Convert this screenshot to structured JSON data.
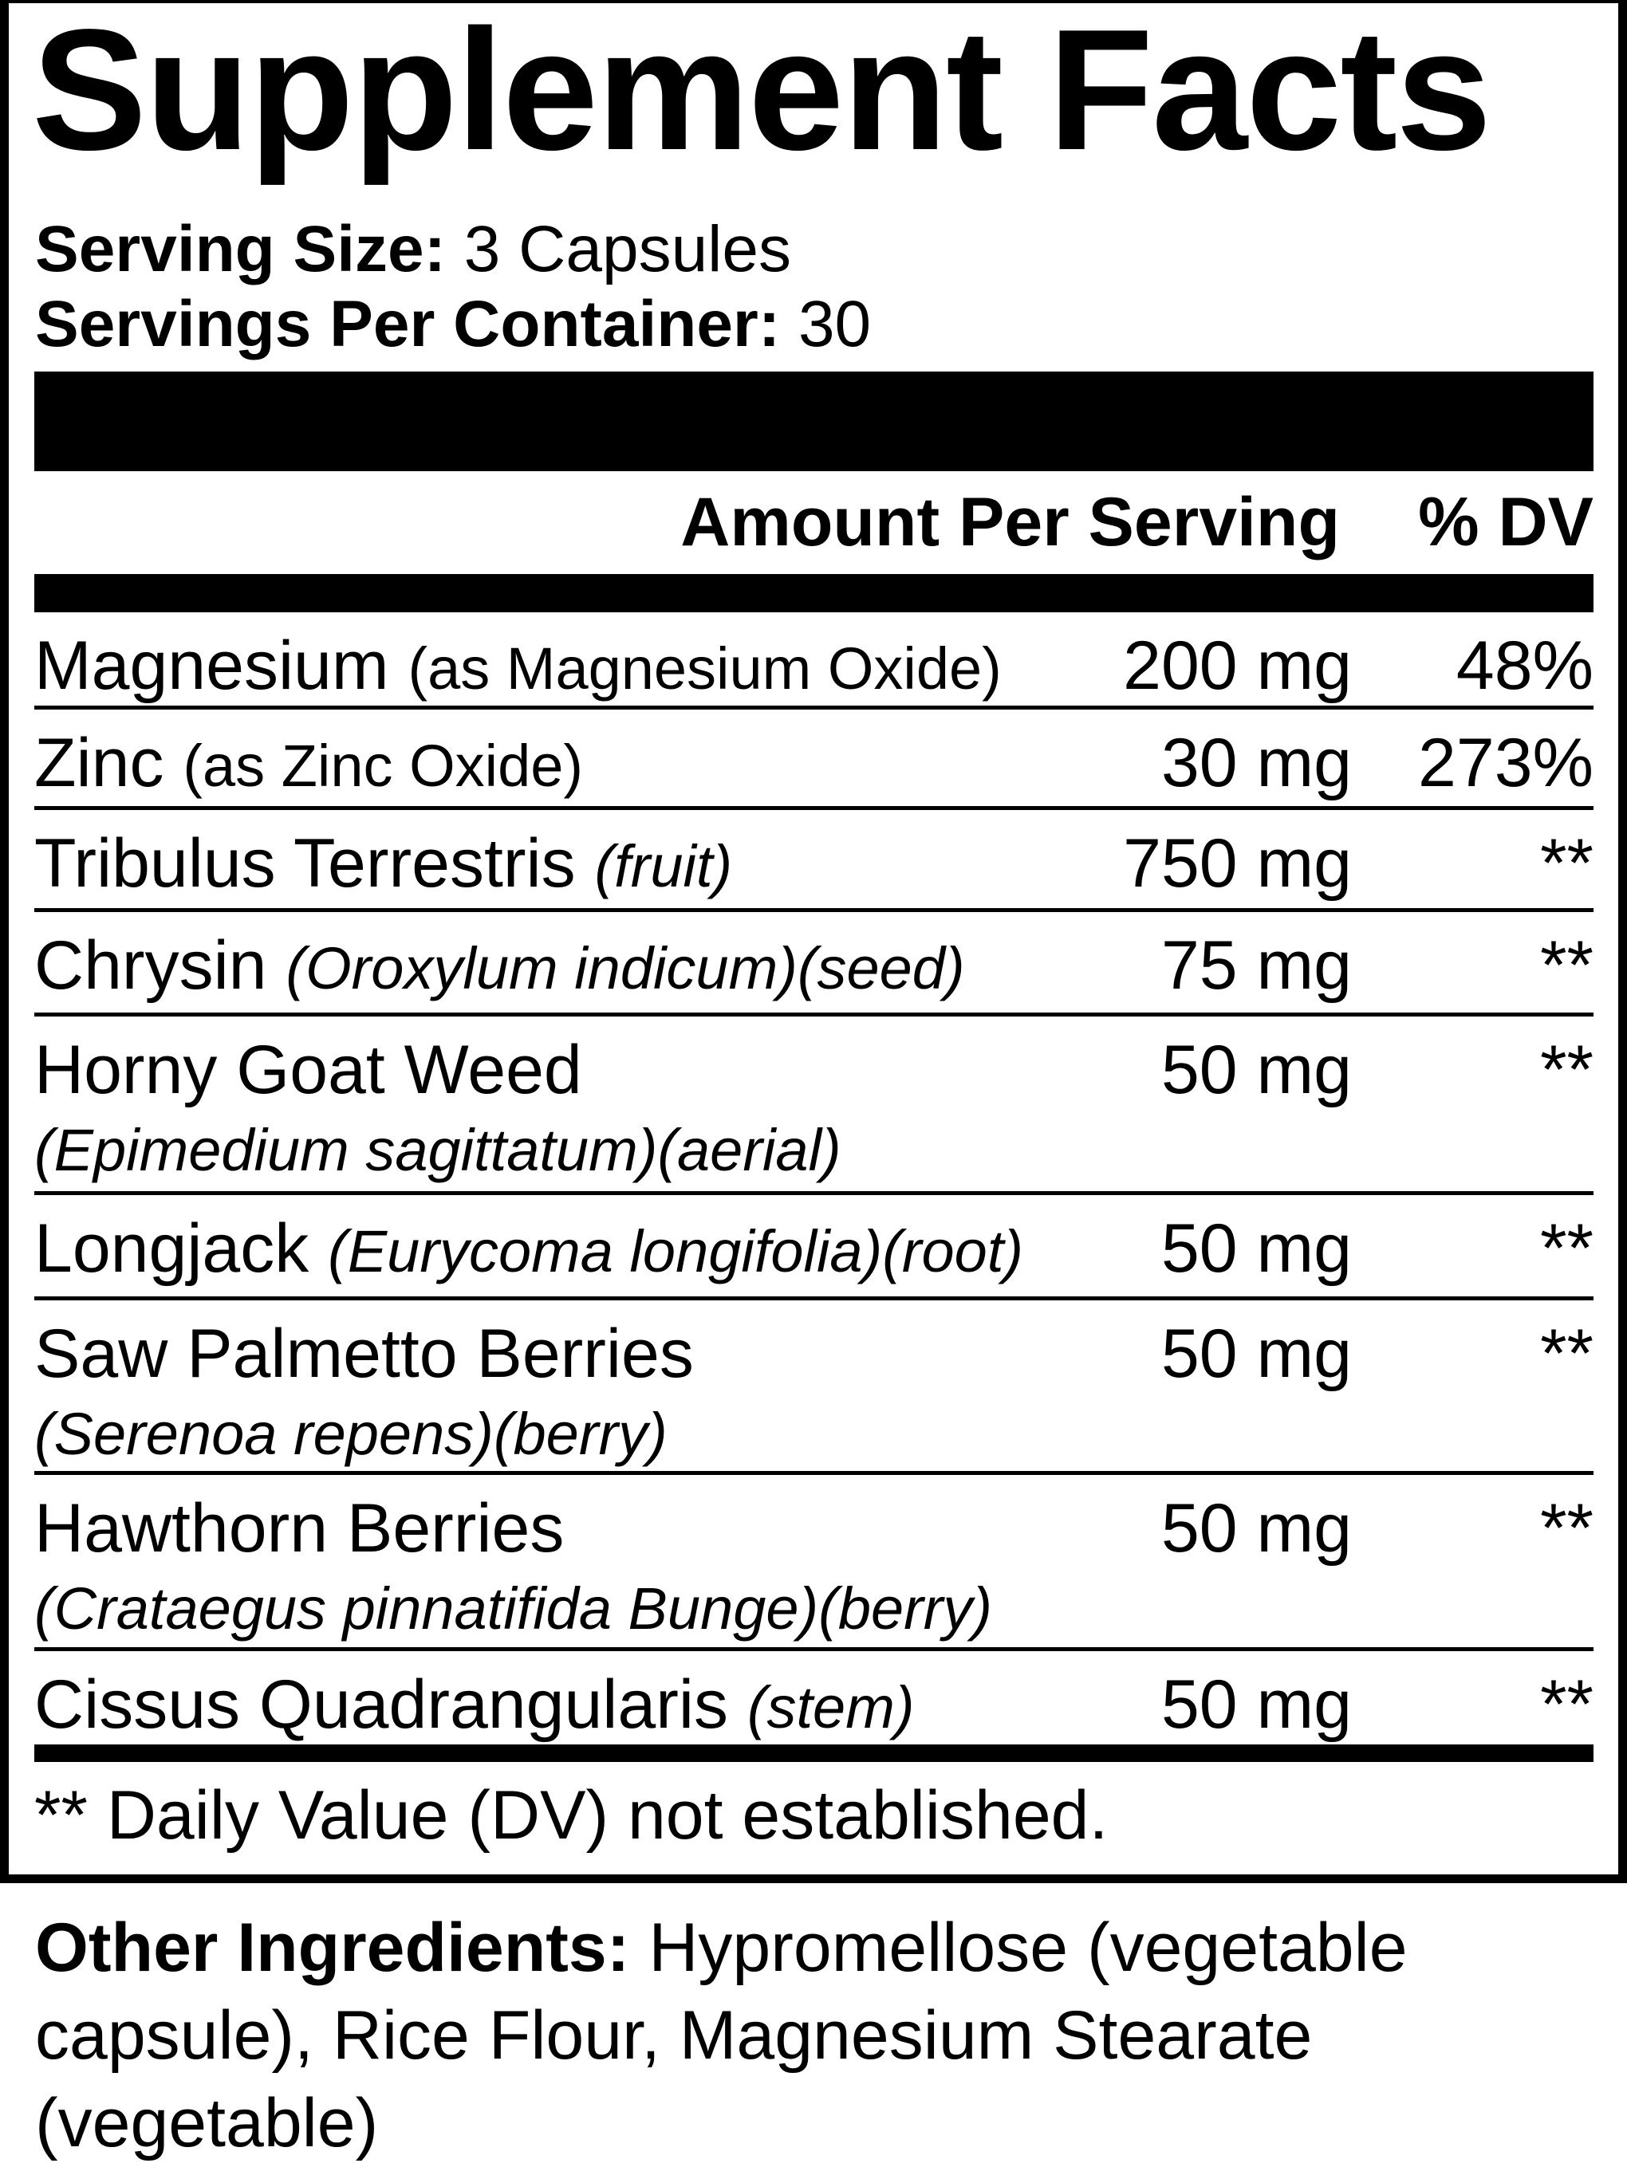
{
  "title": "Supplement Facts",
  "serving_size": {
    "label": "Serving Size:",
    "value": "3 Capsules"
  },
  "servings_per_container": {
    "label": "Servings Per Container:",
    "value": "30"
  },
  "header": {
    "amount": "Amount Per Serving",
    "dv": "% DV"
  },
  "rows": [
    {
      "name": "Magnesium",
      "detail": "(as Magnesium Oxide)",
      "amount": "200 mg",
      "dv": "48%"
    },
    {
      "name": "Zinc",
      "detail": "(as Zinc Oxide)",
      "amount": "30 mg",
      "dv": "273%"
    },
    {
      "name": "Tribulus Terrestris",
      "detail": "(fruit)",
      "amount": "750 mg",
      "dv": "**"
    },
    {
      "name": "Chrysin",
      "detail": "(Oroxylum indicum)(seed)",
      "amount": "75 mg",
      "dv": "**"
    },
    {
      "name": "Horny Goat Weed",
      "detail": "(Epimedium sagittatum)(aerial)",
      "amount": "50 mg",
      "dv": "**"
    },
    {
      "name": "Longjack",
      "detail": "(Eurycoma longifolia)(root)",
      "amount": "50 mg",
      "dv": "**"
    },
    {
      "name": "Saw Palmetto Berries",
      "detail": "(Serenoa repens)(berry)",
      "amount": "50 mg",
      "dv": "**"
    },
    {
      "name": "Hawthorn Berries",
      "detail": "(Crataegus pinnatifida Bunge)(berry)",
      "amount": "50 mg",
      "dv": "**"
    },
    {
      "name": "Cissus Quadrangularis",
      "detail": "(stem)",
      "amount": "50 mg",
      "dv": "**"
    }
  ],
  "footnote": "** Daily Value (DV) not established.",
  "other_ingredients": {
    "label": "Other Ingredients:",
    "value": "Hypromellose (vegetable capsule), Rice Flour, Magnesium Stearate (vegetable)"
  }
}
